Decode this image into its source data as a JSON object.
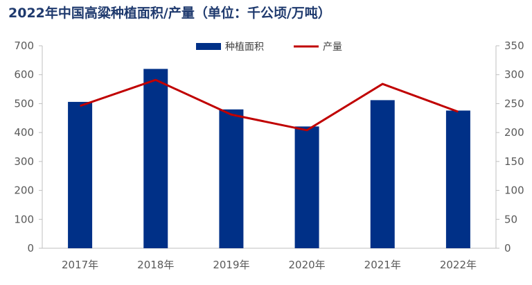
{
  "chart_data": {
    "type": "bar",
    "title": "2022年中国高粱种植面积/产量（单位：千公顷/万吨）",
    "categories": [
      "2017年",
      "2018年",
      "2019年",
      "2020年",
      "2021年",
      "2022年"
    ],
    "series": [
      {
        "name": "种植面积",
        "type": "bar",
        "axis": "left",
        "values": [
          506,
          620,
          480,
          421,
          512,
          476
        ],
        "color": "#003087"
      },
      {
        "name": "产量",
        "type": "line",
        "axis": "right",
        "values": [
          246,
          291,
          231,
          204,
          284,
          236
        ],
        "color": "#c00000"
      }
    ],
    "ylim_left": [
      0,
      700
    ],
    "yticks_left": [
      0,
      100,
      200,
      300,
      400,
      500,
      600,
      700
    ],
    "ylim_right": [
      0,
      350
    ],
    "yticks_right": [
      0,
      50,
      100,
      150,
      200,
      250,
      300,
      350
    ],
    "grid": false,
    "legend_position": "top-center"
  }
}
